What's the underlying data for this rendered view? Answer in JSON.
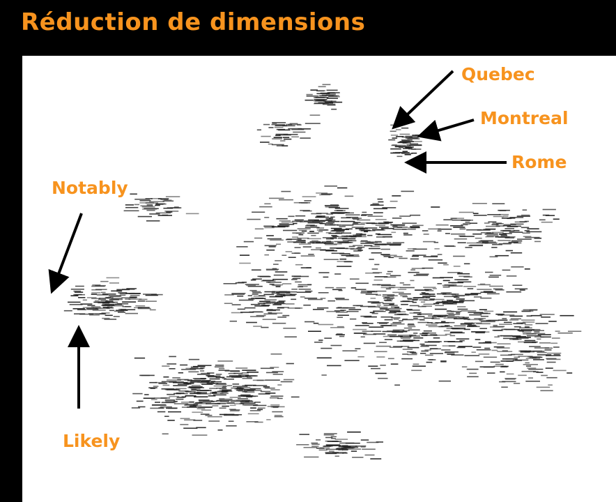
{
  "title": "Réduction de dimensions",
  "labels": {
    "quebec": "Quebec",
    "montreal": "Montreal",
    "rome": "Rome",
    "notably": "Notably",
    "likely": "Likely"
  },
  "colors": {
    "background": "#000000",
    "panel": "#ffffff",
    "accent": "#f7931e",
    "arrow": "#000000",
    "words": "#222222"
  }
}
